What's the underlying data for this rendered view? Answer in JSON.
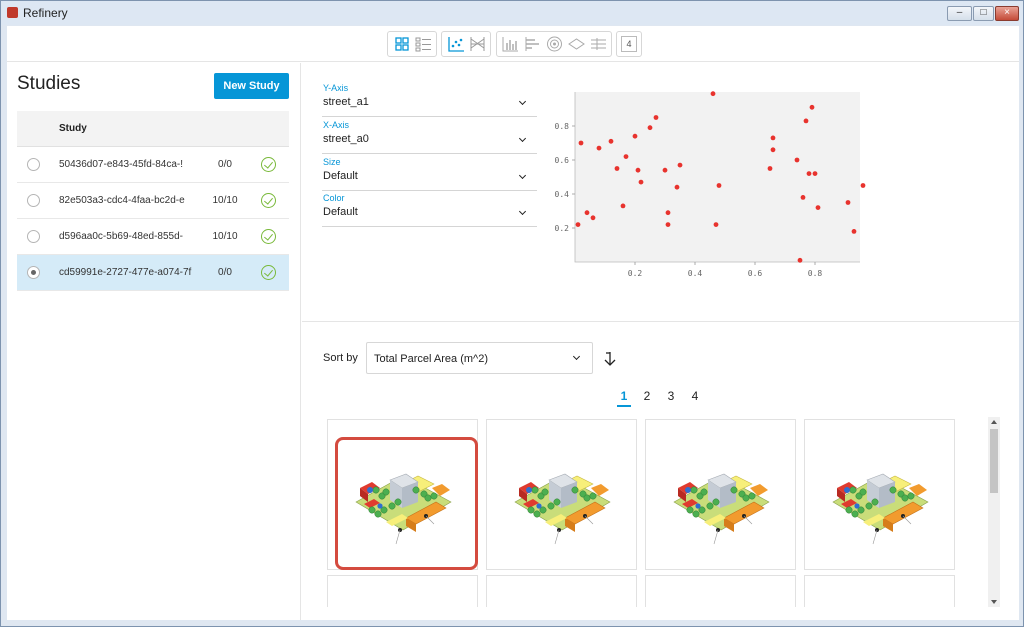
{
  "window": {
    "title": "Refinery",
    "buttons": [
      "–",
      "□",
      "×"
    ]
  },
  "toolbar": {
    "groups": [
      {
        "icons": [
          "grid-view-icon",
          "list-view-icon"
        ]
      },
      {
        "icons": [
          "scatter-plot-icon",
          "parallel-coordinates-icon"
        ]
      },
      {
        "icons": [
          "bar-chart-icon",
          "horizontal-bar-icon",
          "radial-icon",
          "diamond-icon",
          "table-icon"
        ]
      },
      {
        "icons": [
          "number-badge-icon"
        ],
        "badge": "4"
      }
    ]
  },
  "studies": {
    "title": "Studies",
    "new_button": "New Study",
    "column_header": "Study",
    "rows": [
      {
        "id": "50436d07-e843-45fd-84ca-!",
        "count": "0/0",
        "selected": false
      },
      {
        "id": "82e503a3-cdc4-4faa-bc2d-e",
        "count": "10/10",
        "selected": false
      },
      {
        "id": "d596aa0c-5b69-48ed-855d-",
        "count": "10/10",
        "selected": false
      },
      {
        "id": "cd59991e-2727-477e-a074-7f",
        "count": "0/0",
        "selected": true
      }
    ]
  },
  "axes_config": {
    "y_axis": {
      "label": "Y-Axis",
      "value": "street_a1"
    },
    "x_axis": {
      "label": "X-Axis",
      "value": "street_a0"
    },
    "size": {
      "label": "Size",
      "value": "Default"
    },
    "color": {
      "label": "Color",
      "value": "Default"
    }
  },
  "chart_data": {
    "type": "scatter",
    "xlim": [
      0,
      0.95
    ],
    "ylim": [
      0.0,
      1.0
    ],
    "x_ticks": [
      "0.2",
      "0.4",
      "0.6",
      "0.8"
    ],
    "y_ticks": [
      "0.2",
      "0.4",
      "0.6",
      "0.8"
    ],
    "point_color": "#e8332e",
    "background": "#f2f2f2",
    "points": [
      [
        0.01,
        0.22
      ],
      [
        0.02,
        0.7
      ],
      [
        0.04,
        0.29
      ],
      [
        0.06,
        0.26
      ],
      [
        0.08,
        0.67
      ],
      [
        0.12,
        0.71
      ],
      [
        0.14,
        0.55
      ],
      [
        0.16,
        0.33
      ],
      [
        0.17,
        0.62
      ],
      [
        0.2,
        0.74
      ],
      [
        0.22,
        0.47
      ],
      [
        0.21,
        0.54
      ],
      [
        0.25,
        0.79
      ],
      [
        0.27,
        0.85
      ],
      [
        0.3,
        0.54
      ],
      [
        0.31,
        0.29
      ],
      [
        0.31,
        0.22
      ],
      [
        0.34,
        0.44
      ],
      [
        0.35,
        0.57
      ],
      [
        0.46,
        0.99
      ],
      [
        0.47,
        0.22
      ],
      [
        0.48,
        0.45
      ],
      [
        0.65,
        0.55
      ],
      [
        0.66,
        0.73
      ],
      [
        0.66,
        0.66
      ],
      [
        0.74,
        0.6
      ],
      [
        0.75,
        0.01
      ],
      [
        0.76,
        0.38
      ],
      [
        0.77,
        0.83
      ],
      [
        0.78,
        0.52
      ],
      [
        0.79,
        0.91
      ],
      [
        0.8,
        0.52
      ],
      [
        0.81,
        0.32
      ],
      [
        0.91,
        0.35
      ],
      [
        0.93,
        0.18
      ],
      [
        0.96,
        0.45
      ]
    ]
  },
  "sort": {
    "label": "Sort by",
    "value": "Total Parcel Area (m^2)"
  },
  "pagination": {
    "pages": [
      "1",
      "2",
      "3",
      "4"
    ],
    "current": "1"
  },
  "gallery": {
    "accent": "#d44b3f",
    "cards": [
      {
        "highlighted": true
      },
      {
        "highlighted": false
      },
      {
        "highlighted": false
      },
      {
        "highlighted": false
      }
    ]
  }
}
